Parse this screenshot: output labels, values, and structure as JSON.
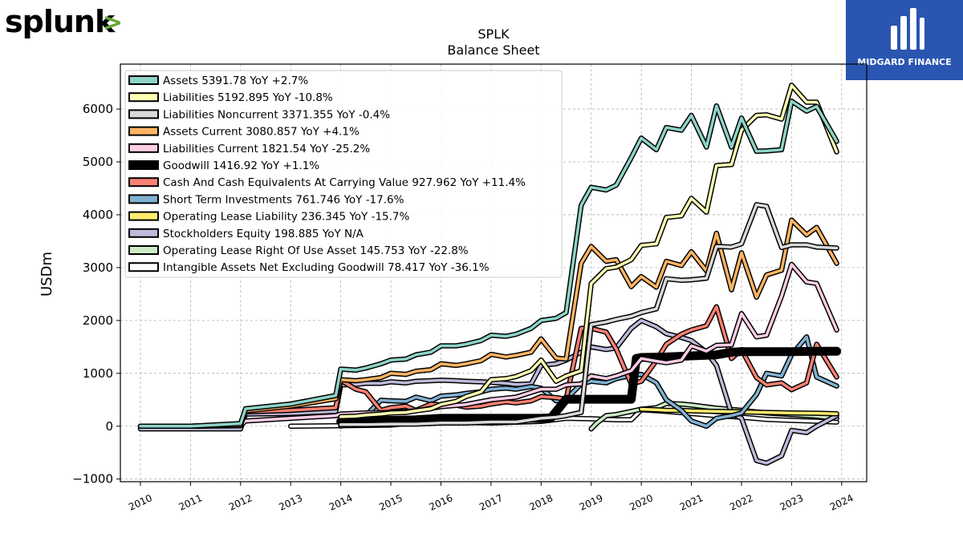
{
  "branding": {
    "company_logo_text": "splunk",
    "company_logo_mark": ">",
    "company_logo_mark_color": "#65a637",
    "publisher_name": "MIDGARD FINANCE",
    "publisher_bg_color": "#2a55b1"
  },
  "chart_data": {
    "type": "line",
    "title": "SPLK",
    "subtitle": "Balance  Sheet",
    "xlabel": "",
    "ylabel": "USDm",
    "xlim": [
      2009.6,
      2024.5
    ],
    "ylim": [
      -1050,
      6850
    ],
    "grid": true,
    "legend_position": "top-left",
    "x_ticks": [
      2010,
      2011,
      2012,
      2013,
      2014,
      2015,
      2016,
      2017,
      2018,
      2019,
      2020,
      2021,
      2022,
      2023,
      2024
    ],
    "y_ticks": [
      -1000,
      0,
      1000,
      2000,
      3000,
      4000,
      5000,
      6000
    ],
    "series": [
      {
        "name": "Assets",
        "legend_label": "Assets  5391.78 YoY +2.7%",
        "color": "#8dd3c7",
        "x": [
          2010,
          2011,
          2012,
          2012.1,
          2013,
          2013.9,
          2014,
          2014.3,
          2014.5,
          2014.8,
          2015,
          2015.3,
          2015.5,
          2015.8,
          2016,
          2016.3,
          2016.5,
          2016.8,
          2017,
          2017.3,
          2017.5,
          2017.8,
          2018,
          2018.3,
          2018.5,
          2018.8,
          2019,
          2019.3,
          2019.5,
          2019.8,
          2020,
          2020.3,
          2020.5,
          2020.8,
          2021,
          2021.3,
          2021.5,
          2021.8,
          2022,
          2022.3,
          2022.5,
          2022.8,
          2023,
          2023.3,
          2023.5,
          2023.9
        ],
        "y": [
          0,
          0,
          50,
          330,
          420,
          580,
          1080,
          1060,
          1100,
          1180,
          1250,
          1270,
          1350,
          1400,
          1520,
          1520,
          1550,
          1620,
          1720,
          1700,
          1740,
          1850,
          2000,
          2040,
          2150,
          4180,
          4520,
          4470,
          4560,
          5080,
          5450,
          5230,
          5650,
          5600,
          5880,
          5280,
          6060,
          5280,
          5830,
          5200,
          5210,
          5230,
          6150,
          5960,
          6050,
          5390
        ]
      },
      {
        "name": "Liabilities",
        "legend_label": "Liabilities  5192.895 YoY -10.8%",
        "color": "#ffffb3",
        "x": [
          2014,
          2014.3,
          2014.5,
          2014.8,
          2015,
          2015.3,
          2015.5,
          2015.8,
          2016,
          2016.3,
          2016.5,
          2016.8,
          2017,
          2017.3,
          2017.5,
          2017.8,
          2018,
          2018.3,
          2018.5,
          2018.8,
          2019,
          2019.3,
          2019.5,
          2019.8,
          2020,
          2020.3,
          2020.5,
          2020.8,
          2021,
          2021.3,
          2021.5,
          2021.8,
          2022,
          2022.3,
          2022.5,
          2022.8,
          2023,
          2023.3,
          2023.5,
          2023.9
        ],
        "y": [
          180,
          190,
          210,
          230,
          250,
          260,
          290,
          330,
          410,
          470,
          560,
          650,
          880,
          900,
          940,
          1050,
          1250,
          850,
          950,
          1050,
          2700,
          2980,
          3010,
          3150,
          3420,
          3450,
          3950,
          3980,
          4310,
          4050,
          4930,
          4950,
          5600,
          5880,
          5890,
          5810,
          6450,
          6130,
          6130,
          5190
        ]
      },
      {
        "name": "Liabilities Noncurrent",
        "legend_label": "Liabilities Noncurrent  3371.355 YoY -0.4%",
        "color": "#d9d9d9",
        "x": [
          2014,
          2014.5,
          2015,
          2015.5,
          2016,
          2016.5,
          2017,
          2017.5,
          2018,
          2018.3,
          2018.5,
          2018.8,
          2019,
          2019.3,
          2019.5,
          2019.8,
          2020,
          2020.3,
          2020.5,
          2020.8,
          2021,
          2021.3,
          2021.5,
          2021.8,
          2022,
          2022.3,
          2022.5,
          2022.8,
          2023,
          2023.3,
          2023.5,
          2023.9
        ],
        "y": [
          30,
          30,
          40,
          40,
          60,
          60,
          80,
          80,
          150,
          170,
          200,
          260,
          1920,
          1970,
          2020,
          2080,
          2150,
          2220,
          2790,
          2760,
          2770,
          2800,
          3400,
          3390,
          3450,
          4190,
          4160,
          3380,
          3430,
          3430,
          3390,
          3370
        ]
      },
      {
        "name": "Assets Current",
        "legend_label": "Assets Current  3080.857 YoY +4.1%",
        "color": "#fdb462",
        "x": [
          2010,
          2011,
          2012,
          2012.1,
          2013,
          2013.9,
          2014,
          2014.3,
          2014.5,
          2014.8,
          2015,
          2015.3,
          2015.5,
          2015.8,
          2016,
          2016.3,
          2016.5,
          2016.8,
          2017,
          2017.3,
          2017.5,
          2017.8,
          2018,
          2018.3,
          2018.5,
          2018.8,
          2019,
          2019.3,
          2019.5,
          2019.8,
          2020,
          2020.3,
          2020.5,
          2020.8,
          2021,
          2021.3,
          2021.5,
          2021.8,
          2022,
          2022.3,
          2022.5,
          2022.8,
          2023,
          2023.3,
          2023.5,
          2023.9
        ],
        "y": [
          0,
          0,
          20,
          290,
          380,
          520,
          880,
          860,
          880,
          920,
          1000,
          980,
          1040,
          1070,
          1180,
          1150,
          1180,
          1240,
          1360,
          1310,
          1340,
          1400,
          1650,
          1290,
          1270,
          3080,
          3400,
          3120,
          3150,
          2640,
          2830,
          2630,
          3120,
          3040,
          3300,
          2940,
          3650,
          2580,
          3280,
          2440,
          2860,
          2950,
          3900,
          3620,
          3760,
          3080
        ]
      },
      {
        "name": "Liabilities Current",
        "legend_label": "Liabilities Current  1821.54 YoY -25.2%",
        "color": "#fccde5",
        "x": [
          2010,
          2011,
          2012,
          2012.1,
          2013,
          2013.9,
          2014,
          2014.5,
          2015,
          2015.5,
          2016,
          2016.5,
          2017,
          2017.5,
          2018,
          2018.3,
          2018.5,
          2018.8,
          2019,
          2019.3,
          2019.5,
          2019.8,
          2020,
          2020.3,
          2020.5,
          2020.8,
          2021,
          2021.3,
          2021.5,
          2021.8,
          2022,
          2022.3,
          2022.5,
          2022.8,
          2023,
          2023.3,
          2023.5,
          2023.9
        ],
        "y": [
          0,
          0,
          10,
          100,
          150,
          200,
          230,
          250,
          260,
          290,
          370,
          410,
          500,
          550,
          700,
          700,
          780,
          800,
          950,
          900,
          950,
          1050,
          1280,
          1230,
          1200,
          1250,
          1520,
          1420,
          1530,
          1540,
          2130,
          1690,
          1720,
          2460,
          3060,
          2730,
          2700,
          1820
        ]
      },
      {
        "name": "Goodwill",
        "legend_label": "Goodwill  1416.92 YoY +1.1%",
        "color": "#000000",
        "x": [
          2014,
          2014.5,
          2015,
          2015.5,
          2016,
          2016.5,
          2017,
          2017.5,
          2018,
          2018.2,
          2018.5,
          2018.8,
          2019,
          2019.5,
          2019.8,
          2019.9,
          2020,
          2020.5,
          2021,
          2021.5,
          2021.8,
          2022,
          2022.5,
          2023,
          2023.5,
          2023.9
        ],
        "y": [
          90,
          100,
          110,
          120,
          150,
          150,
          150,
          150,
          150,
          160,
          510,
          510,
          510,
          510,
          510,
          1280,
          1300,
          1310,
          1330,
          1350,
          1400,
          1410,
          1410,
          1410,
          1417,
          1417
        ]
      },
      {
        "name": "Cash And Cash Equivalents At Carrying Value",
        "legend_label": "Cash And Cash Equivalents At Carrying Value  927.962 YoY +11.4%",
        "color": "#fb8072",
        "x": [
          2010,
          2011,
          2012,
          2012.1,
          2013,
          2013.9,
          2014,
          2014.3,
          2014.5,
          2014.8,
          2015,
          2015.3,
          2015.5,
          2015.8,
          2016,
          2016.3,
          2016.5,
          2016.8,
          2017,
          2017.3,
          2017.5,
          2017.8,
          2018,
          2018.3,
          2018.5,
          2018.8,
          2019,
          2019.3,
          2019.5,
          2019.8,
          2020,
          2020.3,
          2020.5,
          2020.8,
          2021,
          2021.3,
          2021.5,
          2021.8,
          2022,
          2022.3,
          2022.5,
          2022.8,
          2023,
          2023.3,
          2023.5,
          2023.9
        ],
        "y": [
          0,
          0,
          20,
          270,
          300,
          350,
          870,
          700,
          650,
          300,
          350,
          380,
          300,
          420,
          400,
          400,
          360,
          380,
          420,
          460,
          440,
          480,
          560,
          540,
          510,
          1850,
          1850,
          1780,
          1460,
          800,
          850,
          1240,
          1550,
          1740,
          1820,
          1900,
          2260,
          1280,
          1450,
          920,
          780,
          820,
          690,
          820,
          1550,
          930
        ]
      },
      {
        "name": "Short Term Investments",
        "legend_label": "Short Term Investments  761.746 YoY -17.6%",
        "color": "#80b1d3",
        "x": [
          2014,
          2014.5,
          2014.8,
          2015,
          2015.3,
          2015.5,
          2015.8,
          2016,
          2016.3,
          2016.5,
          2016.8,
          2017,
          2017.3,
          2017.5,
          2017.8,
          2018,
          2018.3,
          2018.5,
          2018.8,
          2019,
          2019.3,
          2019.5,
          2019.8,
          2020,
          2020.3,
          2020.5,
          2020.8,
          2021,
          2021.3,
          2021.5,
          2021.8,
          2022,
          2022.3,
          2022.5,
          2022.8,
          2023,
          2023.3,
          2023.5,
          2023.9
        ],
        "y": [
          0,
          200,
          490,
          480,
          470,
          550,
          480,
          570,
          590,
          620,
          650,
          700,
          720,
          700,
          750,
          720,
          480,
          510,
          800,
          850,
          820,
          900,
          960,
          980,
          820,
          500,
          300,
          100,
          0,
          150,
          200,
          250,
          600,
          1000,
          950,
          1350,
          1690,
          930,
          760
        ]
      },
      {
        "name": "Operating Lease Liability",
        "legend_label": "Operating Lease Liability  236.345 YoY -15.7%",
        "color": "#ffed6f",
        "x": [
          2020,
          2020.3,
          2020.5,
          2020.8,
          2021,
          2021.5,
          2022,
          2022.5,
          2023,
          2023.5,
          2023.9
        ],
        "y": [
          320,
          310,
          300,
          300,
          290,
          280,
          270,
          260,
          250,
          245,
          236
        ]
      },
      {
        "name": "Stockholders Equity",
        "legend_label": "Stockholders Equity  198.885 YoY N/A",
        "color": "#bebada",
        "x": [
          2010,
          2011,
          2012,
          2012.1,
          2013,
          2013.9,
          2014,
          2014.3,
          2014.5,
          2014.8,
          2015,
          2015.3,
          2015.5,
          2015.8,
          2016,
          2016.3,
          2016.5,
          2016.8,
          2017,
          2017.3,
          2017.5,
          2017.8,
          2018,
          2018.3,
          2018.5,
          2018.8,
          2019,
          2019.3,
          2019.5,
          2019.8,
          2020,
          2020.3,
          2020.5,
          2020.8,
          2021,
          2021.3,
          2021.5,
          2021.8,
          2022,
          2022.3,
          2022.5,
          2022.8,
          2023,
          2023.3,
          2023.5,
          2023.9
        ],
        "y": [
          -50,
          -50,
          -50,
          230,
          240,
          280,
          780,
          790,
          810,
          810,
          840,
          820,
          850,
          860,
          870,
          860,
          850,
          840,
          830,
          810,
          790,
          800,
          1150,
          1180,
          1250,
          1400,
          1500,
          1450,
          1480,
          1850,
          2000,
          1880,
          1750,
          1680,
          1620,
          1400,
          1150,
          240,
          150,
          -650,
          -700,
          -560,
          -80,
          -120,
          0,
          200
        ]
      },
      {
        "name": "Operating Lease Right Of Use Asset",
        "legend_label": "Operating Lease Right Of Use Asset  145.753 YoY -22.8%",
        "color": "#ccebc5",
        "x": [
          2019,
          2019.1,
          2019.3,
          2019.5,
          2019.8,
          2020,
          2020.3,
          2020.5,
          2020.8,
          2021,
          2021.5,
          2022,
          2022.5,
          2023,
          2023.5,
          2023.9
        ],
        "y": [
          -50,
          50,
          200,
          220,
          280,
          320,
          350,
          430,
          420,
          400,
          340,
          300,
          250,
          220,
          190,
          146
        ]
      },
      {
        "name": "Intangible Assets Net Excluding Goodwill",
        "legend_label": "Intangible Assets Net Excluding Goodwill  78.417 YoY -36.1%",
        "color": "#ffffff",
        "x": [
          2013,
          2014,
          2015,
          2015.5,
          2016,
          2017,
          2018,
          2018.5,
          2019,
          2019.3,
          2019.5,
          2019.8,
          2020,
          2020.5,
          2021,
          2021.5,
          2022,
          2022.5,
          2023,
          2023.5,
          2023.9
        ],
        "y": [
          0,
          10,
          20,
          70,
          80,
          60,
          90,
          150,
          140,
          130,
          120,
          120,
          310,
          280,
          240,
          200,
          170,
          130,
          110,
          95,
          78
        ]
      }
    ]
  }
}
